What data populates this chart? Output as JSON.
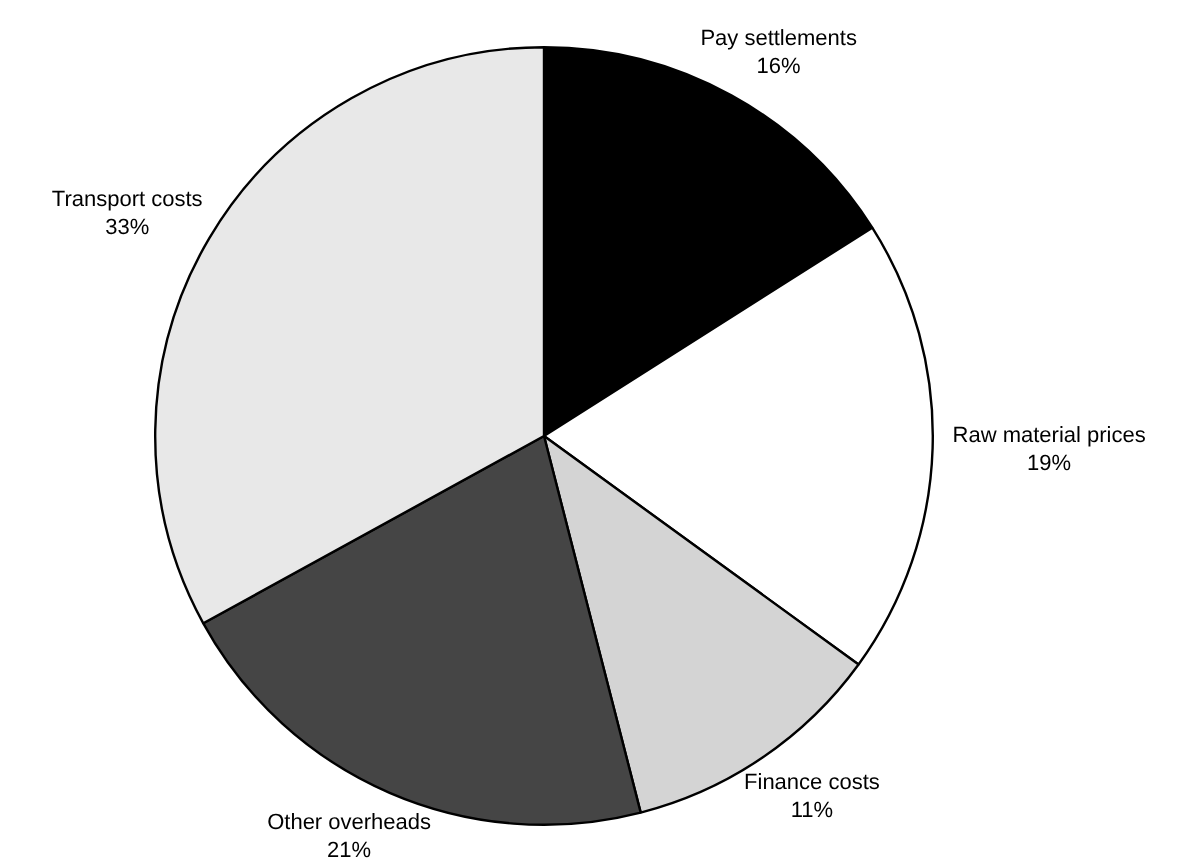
{
  "chart_data": {
    "type": "pie",
    "categories": [
      "Pay settlements",
      "Raw material prices",
      "Finance costs",
      "Other overheads",
      "Transport costs"
    ],
    "values": [
      16,
      19,
      11,
      21,
      33
    ],
    "colors": [
      "#000000",
      "#ffffff",
      "#d4d4d4",
      "#454545",
      "#e8e8e8"
    ],
    "value_labels": [
      "16%",
      "19%",
      "11%",
      "21%",
      "33%"
    ],
    "legend": false
  }
}
